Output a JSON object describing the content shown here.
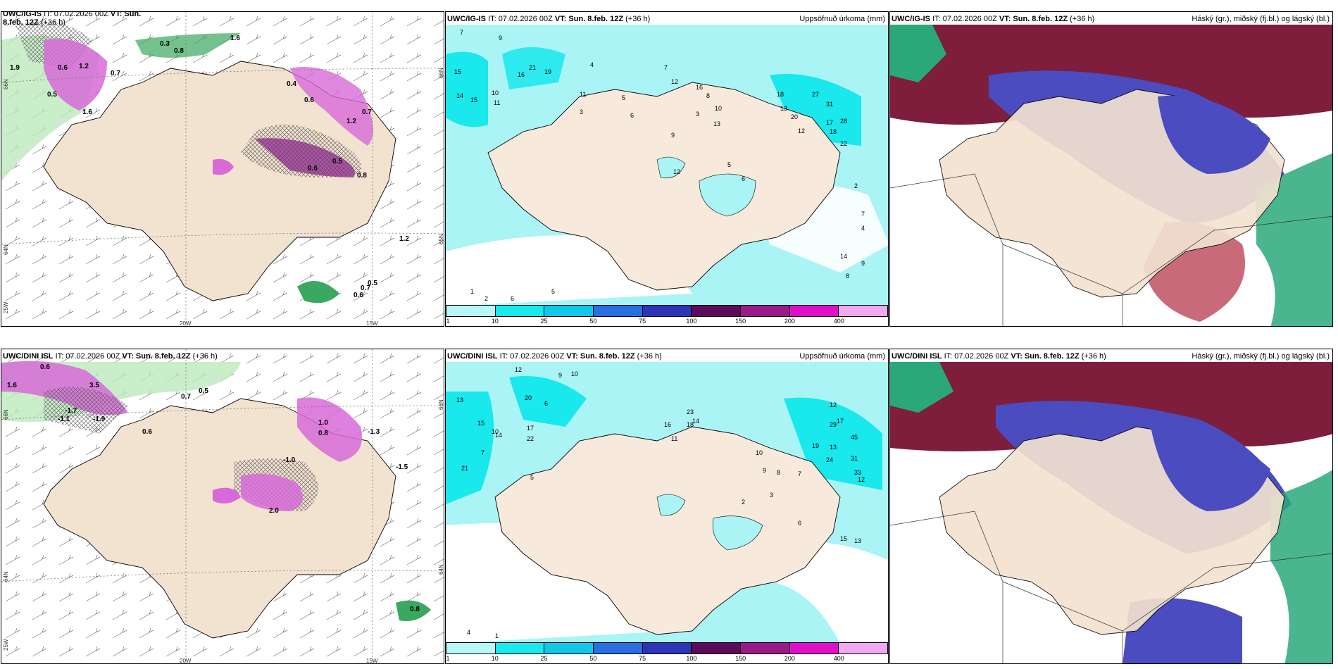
{
  "panels": {
    "p1": {
      "model": "UWC/IG-IS",
      "init": "IT: 07.02.2026 00Z",
      "valid": "VT: Sun. 8.feb. 12Z",
      "lead": "(+36 h)",
      "axis": {
        "lon1": "20W",
        "lon2": "15W",
        "lat1": "66N",
        "lat2": "65N",
        "lat3": "64N",
        "edge": "25W"
      },
      "labels": [
        "0.3",
        "0.8",
        "1.6",
        "1.9",
        "0.6",
        "1.2",
        "0.5",
        "1.6",
        "0.7",
        "0.4",
        "0.6",
        "1.2",
        "0.7",
        "0.5",
        "0.6",
        "0.8",
        "1.2",
        "0.5",
        "0.7",
        "0.6"
      ]
    },
    "p2": {
      "model": "UWC/IG-IS",
      "init": "IT: 07.02.2026 00Z",
      "valid": "VT: Sun. 8.feb. 12Z",
      "lead": "(+36 h)",
      "title_right": "Uppsöfnuð úrkoma (mm)",
      "numbers": [
        "7",
        "9",
        "15",
        "14",
        "15",
        "10",
        "11",
        "16",
        "21",
        "19",
        "4",
        "11",
        "3",
        "5",
        "6",
        "7",
        "12",
        "16",
        "8",
        "3",
        "18",
        "27",
        "31",
        "13",
        "20",
        "17",
        "28",
        "18",
        "22",
        "12",
        "10",
        "13",
        "9",
        "12",
        "5",
        "6",
        "2",
        "4",
        "14",
        "9",
        "8",
        "7",
        "1",
        "2",
        "6",
        "5"
      ]
    },
    "p3": {
      "model": "UWC/IG-IS",
      "init": "IT: 07.02.2026 00Z",
      "valid": "VT: Sun. 8.feb. 12Z",
      "lead": "(+36 h)",
      "title_right": "Háský (gr.), miðský (fj.bl.) og lágský (bl.)"
    },
    "p4": {
      "model": "UWC/DINI ISL",
      "init": "IT: 07.02.2026 00Z",
      "valid": "VT: Sun. 8.feb. 12Z",
      "lead": "(+36 h)",
      "axis": {
        "lon1": "20W",
        "lon2": "15W",
        "lat1": "66N",
        "lat2": "64N",
        "edge": "25W"
      },
      "labels": [
        "0.6",
        "1.6",
        "3.5",
        "0.7",
        "-1.7",
        "-1.1",
        "-1.9",
        "0.5",
        "0.6",
        "-1.3",
        "-1.5",
        "1.0",
        "-1.0",
        "0.8",
        "2.0",
        "0.8"
      ]
    },
    "p5": {
      "model": "UWC/DINI ISL",
      "init": "IT: 07.02.2026 00Z",
      "valid": "VT: Sun. 8.feb. 12Z",
      "lead": "(+36 h)",
      "title_right": "Uppsöfnuð úrkoma (mm)",
      "numbers": [
        "12",
        "9",
        "10",
        "13",
        "15",
        "20",
        "6",
        "7",
        "14",
        "17",
        "22",
        "10",
        "21",
        "23",
        "18",
        "14",
        "12",
        "17",
        "29",
        "45",
        "13",
        "19",
        "24",
        "31",
        "33",
        "12",
        "16",
        "11",
        "10",
        "9",
        "8",
        "7",
        "5",
        "3",
        "2",
        "1",
        "4",
        "6",
        "15",
        "13"
      ]
    },
    "p6": {
      "model": "UWC/DINI ISL",
      "init": "IT: 07.02.2026 00Z",
      "valid": "VT: Sun. 8.feb. 12Z",
      "lead": "(+36 h)",
      "title_right": "Háský (gr.), miðský (fj.bl.) og lágský (bl.)"
    }
  },
  "colorbar": {
    "ticks": [
      "1",
      "10",
      "25",
      "50",
      "75",
      "100",
      "150",
      "200",
      "400"
    ],
    "colors": [
      "#b8f6f8",
      "#19e8ec",
      "#10c8e8",
      "#2a6fe0",
      "#2a35b8",
      "#5c0a5c",
      "#9a1a8a",
      "#e010c8",
      "#f0a8f0"
    ]
  },
  "colors": {
    "land": "#f2e2d0",
    "precip_light": "#aaf4f6",
    "precip_mid": "#19e8ec",
    "high_cloud": "#7e1e3c",
    "mid_cloud": "#4a4cc0",
    "low_cloud": "#2aa87a",
    "temp_pink": "#d76ad8",
    "temp_green": "#3aa860"
  }
}
